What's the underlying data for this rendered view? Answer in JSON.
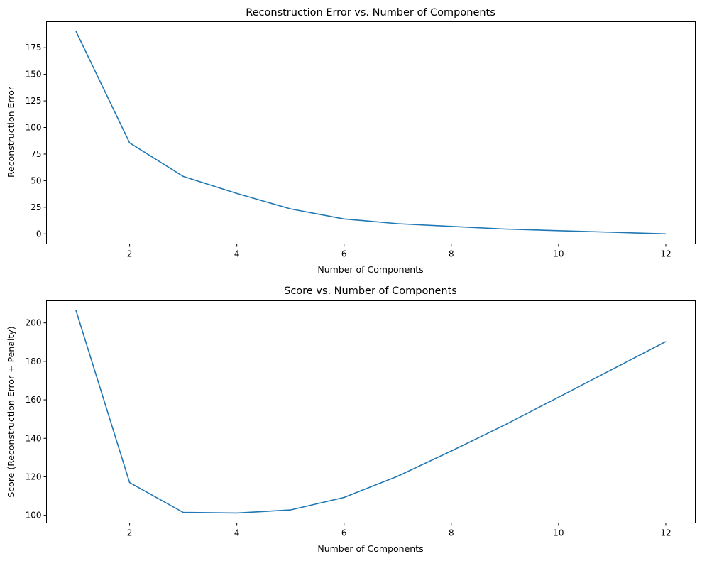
{
  "chart_data": [
    {
      "type": "line",
      "title": "Reconstruction Error vs. Number of Components",
      "xlabel": "Number of Components",
      "ylabel": "Reconstruction Error",
      "xlim": [
        0.45,
        12.55
      ],
      "ylim": [
        -9.5,
        199.5
      ],
      "xticks": [
        2,
        4,
        6,
        8,
        10,
        12
      ],
      "yticks": [
        0,
        25,
        50,
        75,
        100,
        125,
        150,
        175
      ],
      "grid": false,
      "line_color": "#1f77b4",
      "x": [
        1,
        2,
        3,
        4,
        5,
        6,
        7,
        8,
        9,
        10,
        11,
        12
      ],
      "y": [
        190.5,
        85.5,
        54.0,
        38.0,
        23.5,
        14.0,
        9.5,
        7.0,
        4.5,
        3.0,
        1.5,
        0.0
      ]
    },
    {
      "type": "line",
      "title": "Score vs. Number of Components",
      "xlabel": "Number of Components",
      "ylabel": "Score (Reconstruction Error + Penalty)",
      "xlim": [
        0.45,
        12.55
      ],
      "ylim": [
        96.0,
        211.5
      ],
      "xticks": [
        2,
        4,
        6,
        8,
        10,
        12
      ],
      "yticks": [
        100,
        120,
        140,
        160,
        180,
        200
      ],
      "grid": false,
      "line_color": "#1f77b4",
      "x": [
        1,
        2,
        3,
        4,
        5,
        6,
        7,
        8,
        9,
        10,
        11,
        12
      ],
      "y": [
        206.5,
        117.0,
        101.5,
        101.2,
        102.8,
        109.3,
        120.3,
        133.4,
        147.0,
        161.4,
        175.8,
        190.3
      ]
    }
  ]
}
